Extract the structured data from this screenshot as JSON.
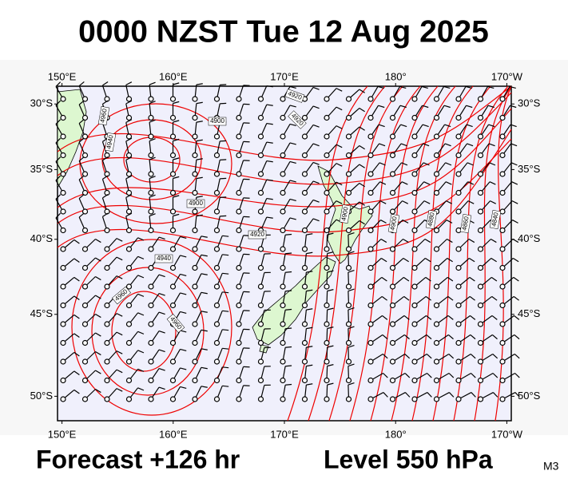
{
  "title": "0000 NZST Tue 12 Aug 2025",
  "map": {
    "extent": {
      "lon": [
        149.6,
        190.4
      ],
      "lat": [
        28.6,
        51.4
      ]
    },
    "lon_ticks": [
      {
        "value": 150,
        "label": "150°E"
      },
      {
        "value": 160,
        "label": "160°E"
      },
      {
        "value": 170,
        "label": "170°E"
      },
      {
        "value": 180,
        "label": "180°"
      },
      {
        "value": 190,
        "label": "170°W"
      }
    ],
    "lat_ticks": [
      {
        "value": 30,
        "label": "30°S"
      },
      {
        "value": 35,
        "label": "35°S"
      },
      {
        "value": 40,
        "label": "40°S"
      },
      {
        "value": 45,
        "label": "45°S"
      },
      {
        "value": 50,
        "label": "50°S"
      }
    ],
    "contour_labels": [
      "4960",
      "4940",
      "4900",
      "4920",
      "4920",
      "4900",
      "4920",
      "4940",
      "4960",
      "4960",
      "4900",
      "4900",
      "4880",
      "4860",
      "4840"
    ]
  },
  "footer": {
    "forecast": "Forecast +126 hr",
    "level": "Level 550 hPa",
    "model": "M3"
  }
}
